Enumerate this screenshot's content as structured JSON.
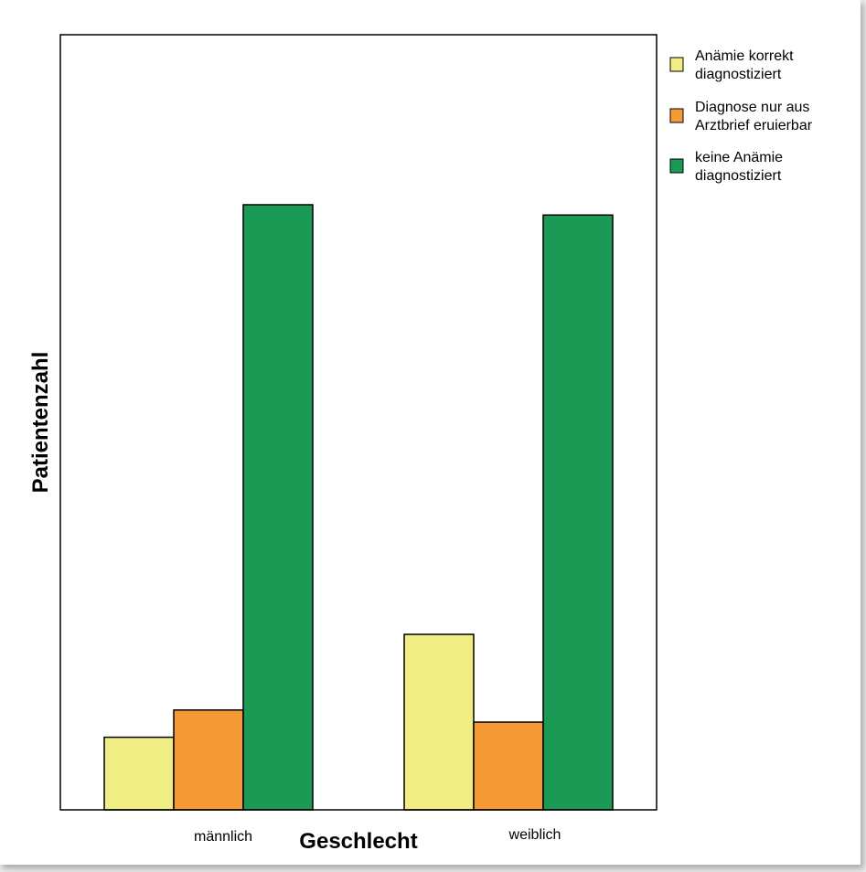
{
  "chart_data": {
    "type": "bar",
    "title": "",
    "xlabel": "Geschlecht",
    "ylabel": "Patientenzahl",
    "categories": [
      "männlich",
      "weiblich"
    ],
    "ylim": [
      0,
      100
    ],
    "grid": false,
    "legend_position": "right",
    "series": [
      {
        "name": "Anämie korrekt diagnostiziert",
        "color": "#f0ee84",
        "values": [
          12.0,
          29.0
        ]
      },
      {
        "name": "Diagnose nur aus Arztbrief eruierbar",
        "color": "#f59a34",
        "values": [
          16.5,
          14.5
        ]
      },
      {
        "name": "keine Anämie diagnostiziert",
        "color": "#1a9a55",
        "values": [
          100.0,
          98.3
        ]
      }
    ]
  },
  "legend": {
    "items": [
      {
        "line1": "Anämie korrekt",
        "line2": "diagnostiziert"
      },
      {
        "line1": "Diagnose nur aus",
        "line2": "Arztbrief eruierbar"
      },
      {
        "line1": "keine Anämie",
        "line2": "diagnostiziert"
      }
    ]
  }
}
